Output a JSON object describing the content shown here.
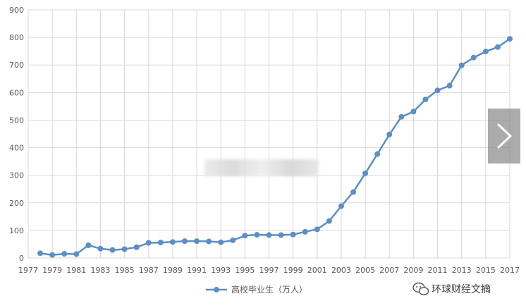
{
  "chart_data": {
    "type": "line",
    "title": "",
    "xlabel": "",
    "ylabel": "",
    "x": [
      1978,
      1979,
      1980,
      1981,
      1982,
      1983,
      1984,
      1985,
      1986,
      1987,
      1988,
      1989,
      1990,
      1991,
      1992,
      1993,
      1994,
      1995,
      1996,
      1997,
      1998,
      1999,
      2000,
      2001,
      2002,
      2003,
      2004,
      2005,
      2006,
      2007,
      2008,
      2009,
      2010,
      2011,
      2012,
      2013,
      2014,
      2015,
      2016,
      2017
    ],
    "series": [
      {
        "name": "高校毕业生（万人）",
        "color": "#5b8fc7",
        "values": [
          17,
          11,
          15,
          14,
          46,
          34,
          29,
          32,
          39,
          55,
          56,
          58,
          61,
          61,
          60,
          57,
          64,
          81,
          84,
          83,
          83,
          85,
          95,
          104,
          134,
          188,
          239,
          307,
          377,
          448,
          512,
          531,
          575,
          608,
          625,
          699,
          727,
          749,
          765,
          795
        ]
      }
    ],
    "x_ticks": [
      "1977",
      "1979",
      "1981",
      "1983",
      "1985",
      "1987",
      "1989",
      "1991",
      "1993",
      "1995",
      "1997",
      "1999",
      "2001",
      "2003",
      "2005",
      "2007",
      "2009",
      "2011",
      "2013",
      "2015",
      "2017"
    ],
    "y_ticks": [
      "0",
      "100",
      "200",
      "300",
      "400",
      "500",
      "600",
      "700",
      "800",
      "900"
    ],
    "xlim": [
      1977,
      2017
    ],
    "ylim": [
      0,
      900
    ],
    "grid": "vertical-and-horizontal",
    "legend_position": "bottom-center"
  },
  "watermark": {
    "text": "环球财经文摘",
    "icon": "wechat-icon"
  },
  "overlay": {
    "next_icon": "chevron-right-icon"
  }
}
